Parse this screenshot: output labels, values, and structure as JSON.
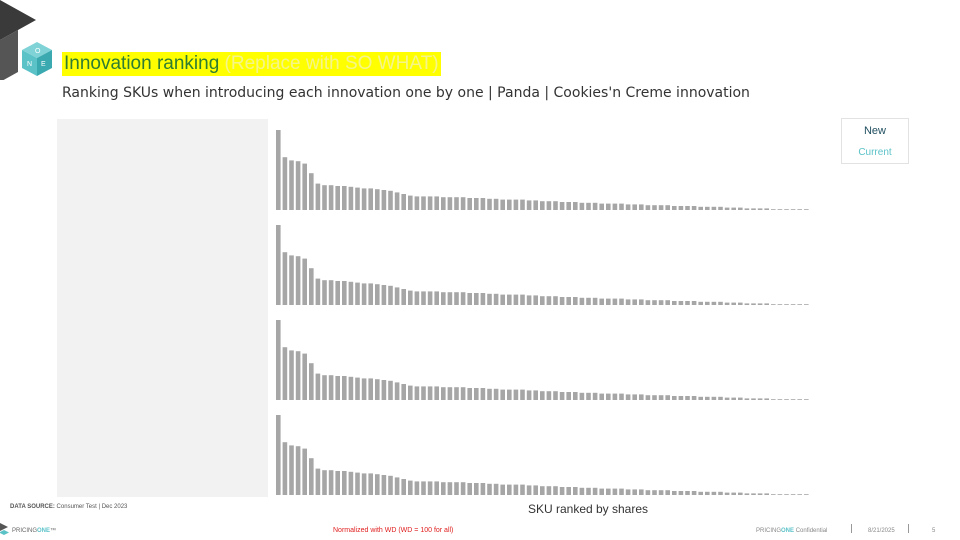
{
  "header": {
    "title_main": "Innovation ranking",
    "title_note": " (Replace with SO WHAT)",
    "subtitle": "Ranking SKUs when introducing each innovation one by one | Panda | Cookies'n Creme innovation"
  },
  "legend": {
    "new_label": "New",
    "current_label": "Current"
  },
  "footer": {
    "source_bold": "DATA SOURCE:",
    "source_text": " Consumer Test | Dec 2023",
    "normalization_note": "Normalized with WD (WD = 100 for all)",
    "brand_prefix": "PRICING",
    "brand_accent": "ONE",
    "brand_mark": "™",
    "confidential_prefix": "PRICING",
    "confidential_accent": "ONE",
    "confidential_suffix": " Confidential",
    "date": "8/21/2025",
    "page_number": "5"
  },
  "colors": {
    "bar": "#a6a6a6",
    "title_highlight": "#ffff00",
    "title_text": "#2e7d32",
    "legend_new": "#1f4e5f",
    "legend_current": "#5bc2c8",
    "note_red": "#e02020"
  },
  "chart_data": {
    "type": "bar",
    "xlabel": "SKU ranked by shares",
    "ylabel": "",
    "grid": false,
    "legend_placement": "top-right",
    "legend_entries": [
      "New",
      "Current"
    ],
    "panels": [
      {
        "values": [
          100,
          66,
          62,
          61,
          58,
          46,
          33,
          31,
          31,
          30,
          30,
          29,
          28,
          27,
          27,
          26,
          25,
          24,
          22,
          20,
          18,
          17,
          17,
          17,
          17,
          16,
          16,
          16,
          16,
          15,
          15,
          15,
          14,
          14,
          13,
          13,
          13,
          13,
          12,
          12,
          11,
          11,
          11,
          10,
          10,
          10,
          9,
          9,
          9,
          8,
          8,
          8,
          8,
          7,
          7,
          7,
          6,
          6,
          6,
          6,
          5,
          5,
          5,
          5,
          4,
          4,
          4,
          4,
          3,
          3,
          3,
          2,
          2,
          2,
          2,
          1,
          1,
          1,
          1,
          1,
          1
        ]
      },
      {
        "values": [
          100,
          66,
          62,
          61,
          58,
          46,
          33,
          31,
          31,
          30,
          30,
          29,
          28,
          27,
          27,
          26,
          25,
          24,
          22,
          20,
          18,
          17,
          17,
          17,
          17,
          16,
          16,
          16,
          16,
          15,
          15,
          15,
          14,
          14,
          13,
          13,
          13,
          13,
          12,
          12,
          11,
          11,
          11,
          10,
          10,
          10,
          9,
          9,
          9,
          8,
          8,
          8,
          8,
          7,
          7,
          7,
          6,
          6,
          6,
          6,
          5,
          5,
          5,
          5,
          4,
          4,
          4,
          4,
          3,
          3,
          3,
          2,
          2,
          2,
          2,
          1,
          1,
          1,
          1,
          1,
          1
        ]
      },
      {
        "values": [
          100,
          66,
          62,
          61,
          58,
          46,
          33,
          31,
          31,
          30,
          30,
          29,
          28,
          27,
          27,
          26,
          25,
          24,
          22,
          20,
          18,
          17,
          17,
          17,
          17,
          16,
          16,
          16,
          16,
          15,
          15,
          15,
          14,
          14,
          13,
          13,
          13,
          13,
          12,
          12,
          11,
          11,
          11,
          10,
          10,
          10,
          9,
          9,
          9,
          8,
          8,
          8,
          8,
          7,
          7,
          7,
          6,
          6,
          6,
          6,
          5,
          5,
          5,
          5,
          4,
          4,
          4,
          4,
          3,
          3,
          3,
          2,
          2,
          2,
          2,
          1,
          1,
          1,
          1,
          1,
          1
        ]
      },
      {
        "values": [
          100,
          66,
          62,
          61,
          58,
          46,
          33,
          31,
          31,
          30,
          30,
          29,
          28,
          27,
          27,
          26,
          25,
          24,
          22,
          20,
          18,
          17,
          17,
          17,
          17,
          16,
          16,
          16,
          16,
          15,
          15,
          15,
          14,
          14,
          13,
          13,
          13,
          13,
          12,
          12,
          11,
          11,
          11,
          10,
          10,
          10,
          9,
          9,
          9,
          8,
          8,
          8,
          8,
          7,
          7,
          7,
          6,
          6,
          6,
          6,
          5,
          5,
          5,
          5,
          4,
          4,
          4,
          4,
          3,
          3,
          3,
          2,
          2,
          2,
          2,
          1,
          1,
          1,
          1,
          1,
          1
        ]
      }
    ]
  }
}
